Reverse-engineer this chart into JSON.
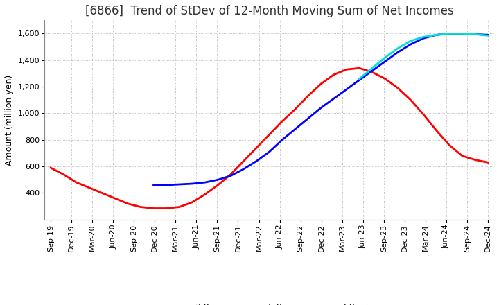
{
  "title": "[6866]  Trend of StDev of 12-Month Moving Sum of Net Incomes",
  "ylabel": "Amount (million yen)",
  "ylim": [
    200,
    1700
  ],
  "yticks": [
    400,
    600,
    800,
    1000,
    1200,
    1400,
    1600
  ],
  "background_color": "#ffffff",
  "grid_color": "#aaaaaa",
  "series": {
    "3 Years": {
      "color": "#ff0000",
      "points": [
        590,
        540,
        480,
        440,
        400,
        360,
        320,
        295,
        285,
        285,
        295,
        330,
        390,
        460,
        540,
        640,
        740,
        840,
        940,
        1030,
        1130,
        1220,
        1290,
        1330,
        1340,
        1310,
        1260,
        1190,
        1100,
        990,
        870,
        760,
        680,
        650,
        630
      ]
    },
    "5 Years": {
      "color": "#0000ff",
      "points": [
        null,
        null,
        null,
        null,
        null,
        null,
        null,
        null,
        460,
        460,
        465,
        470,
        480,
        500,
        530,
        580,
        640,
        710,
        800,
        880,
        960,
        1040,
        1110,
        1180,
        1250,
        1320,
        1390,
        1460,
        1520,
        1565,
        1590,
        1600,
        1600,
        1595,
        1590
      ]
    },
    "7 Years": {
      "color": "#00dddd",
      "points": [
        null,
        null,
        null,
        null,
        null,
        null,
        null,
        null,
        null,
        null,
        null,
        null,
        null,
        null,
        null,
        null,
        null,
        null,
        null,
        null,
        null,
        null,
        null,
        null,
        1260,
        1340,
        1420,
        1490,
        1545,
        1575,
        1590,
        1600,
        1600,
        1595,
        1585
      ]
    },
    "10 Years": {
      "color": "#008000",
      "points": [
        null,
        null,
        null,
        null,
        null,
        null,
        null,
        null,
        null,
        null,
        null,
        null,
        null,
        null,
        null,
        null,
        null,
        null,
        null,
        null,
        null,
        null,
        null,
        null,
        null,
        null,
        null,
        null,
        null,
        null,
        null,
        null,
        null,
        null,
        null
      ]
    }
  },
  "x_labels": [
    "Sep-19",
    "Dec-19",
    "Mar-20",
    "Jun-20",
    "Sep-20",
    "Dec-20",
    "Mar-21",
    "Jun-21",
    "Sep-21",
    "Dec-21",
    "Mar-22",
    "Jun-22",
    "Sep-22",
    "Dec-22",
    "Mar-23",
    "Jun-23",
    "Sep-23",
    "Dec-23",
    "Mar-24",
    "Jun-24",
    "Sep-24",
    "Dec-24"
  ],
  "title_fontsize": 12,
  "axis_fontsize": 9,
  "tick_fontsize": 8,
  "legend_fontsize": 9
}
